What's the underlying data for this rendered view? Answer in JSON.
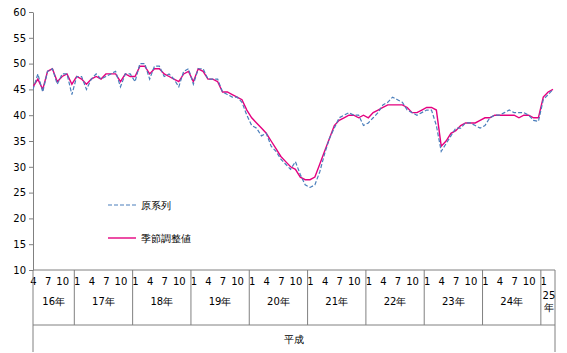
{
  "chart_data": {
    "type": "line",
    "x_label": "平成",
    "x_groups": [
      "16年",
      "17年",
      "18年",
      "19年",
      "20年",
      "21年",
      "22年",
      "23年",
      "24年",
      "25年"
    ],
    "categories": [
      "4",
      null,
      null,
      "7",
      null,
      null,
      "10",
      null,
      null,
      "1",
      null,
      null,
      "4",
      null,
      null,
      "7",
      null,
      null,
      "10",
      null,
      null,
      "1",
      null,
      null,
      "4",
      null,
      null,
      "7",
      null,
      null,
      "10",
      null,
      null,
      "1",
      null,
      null,
      "4",
      null,
      null,
      "7",
      null,
      null,
      "10",
      null,
      null,
      "1",
      null,
      null,
      "4",
      null,
      null,
      "7",
      null,
      null,
      "10",
      null,
      null,
      "1",
      null,
      null,
      "4",
      null,
      null,
      "7",
      null,
      null,
      "10",
      null,
      null,
      "1",
      null,
      null,
      "4",
      null,
      null,
      "7",
      null,
      null,
      "10",
      null,
      null,
      "1",
      null,
      null,
      "4",
      null,
      null,
      "7",
      null,
      null,
      "10",
      null,
      null,
      "1",
      null,
      null,
      "4",
      null,
      null,
      "7",
      null,
      null,
      "10",
      null,
      null,
      "1",
      null,
      null
    ],
    "series": [
      {
        "name": "原系列",
        "color": "#4a7ebb",
        "line_style": "dashed",
        "values": [
          45,
          48,
          44.5,
          48.5,
          49,
          46,
          48,
          48,
          44,
          47.5,
          47.5,
          45,
          47,
          48,
          47,
          47.5,
          48,
          48.5,
          45.5,
          48,
          48,
          46.5,
          50,
          50,
          47,
          49.5,
          49.5,
          47.5,
          48,
          47,
          45.5,
          48.5,
          49,
          46,
          49,
          49,
          47,
          47,
          47,
          44.5,
          44,
          43.5,
          43.5,
          42.5,
          40,
          38,
          37.5,
          36,
          36.5,
          34,
          33,
          31.5,
          30.5,
          29.5,
          31,
          28.5,
          26.5,
          26,
          26.5,
          29,
          32.5,
          35.5,
          37.5,
          39.5,
          40,
          40.5,
          40,
          40,
          38,
          38.5,
          39.5,
          40.5,
          42,
          42.5,
          43.5,
          43,
          42.5,
          41,
          40.5,
          40,
          40.5,
          41,
          41,
          38,
          33,
          34.5,
          36,
          37.5,
          37.5,
          38.5,
          38.5,
          38,
          37.5,
          38,
          39.5,
          40,
          40,
          40.5,
          41,
          40.5,
          40.5,
          40.5,
          40,
          39,
          38.8,
          43,
          44,
          45
        ]
      },
      {
        "name": "季節調整値",
        "color": "#e4007f",
        "line_style": "solid",
        "values": [
          45.5,
          47,
          45,
          48.5,
          49,
          46.5,
          47.5,
          48,
          46,
          47.5,
          47,
          46,
          47,
          47.5,
          47,
          48,
          48,
          48,
          46.5,
          48,
          47.5,
          47.5,
          49.5,
          49.5,
          48,
          49,
          49,
          48,
          47.5,
          47,
          46.5,
          48,
          48.5,
          46.5,
          49,
          48.5,
          47,
          47,
          46.5,
          44.5,
          44.5,
          44,
          43.5,
          43,
          41,
          39.5,
          38.5,
          37.5,
          36.5,
          35,
          33.5,
          32,
          31,
          30,
          29.5,
          28,
          27.5,
          27.5,
          28,
          30.5,
          33,
          35.5,
          38,
          39,
          39.5,
          40,
          40,
          39.5,
          40,
          39.5,
          40.5,
          41,
          41.5,
          42,
          42,
          42,
          42,
          41.5,
          40.5,
          40.5,
          41,
          41.5,
          41.5,
          41,
          34,
          35,
          36.5,
          37,
          38,
          38.5,
          38.5,
          38.5,
          39,
          39.5,
          39.5,
          40,
          40,
          40,
          40,
          40,
          39.5,
          40,
          40,
          39.5,
          39.5,
          43.5,
          44.5,
          45
        ]
      }
    ],
    "ylim": [
      10,
      60
    ],
    "yticks": [
      10,
      15,
      20,
      25,
      30,
      35,
      40,
      45,
      50,
      55,
      60
    ],
    "grid": false,
    "legend": "lower left"
  }
}
